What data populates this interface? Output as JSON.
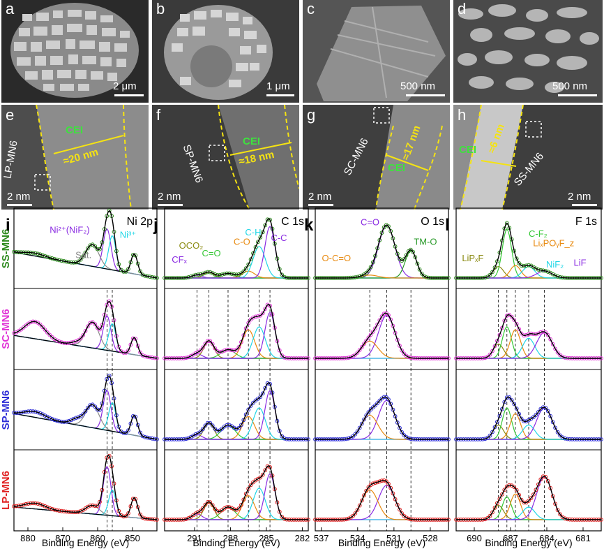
{
  "micrographs": {
    "panels": [
      {
        "letter": "a",
        "scale": "2 μm"
      },
      {
        "letter": "b",
        "scale": "1 μm"
      },
      {
        "letter": "c",
        "scale": "500 nm"
      },
      {
        "letter": "d",
        "scale": "500 nm"
      },
      {
        "letter": "e",
        "scale": "2 nm",
        "sample": "LP-MN6",
        "cei": "CEI",
        "thickness": "≈20 nm"
      },
      {
        "letter": "f",
        "scale": "2 nm",
        "sample": "SP-MN6",
        "cei": "CEI",
        "thickness": "≈18 nm"
      },
      {
        "letter": "g",
        "scale": "2 nm",
        "sample": "SC-MN6",
        "cei": "CEI",
        "thickness": "≈17 nm"
      },
      {
        "letter": "h",
        "scale": "2 nm",
        "sample": "SS-MN6",
        "cei": "CEI",
        "thickness": "≈6 nm"
      }
    ]
  },
  "colors": {
    "SS-MN6": "#2e8b1e",
    "SC-MN6": "#e033d6",
    "SP-MN6": "#2b2bd6",
    "LP-MN6": "#e02020",
    "envelope": "#000000",
    "background": "#4ab8e8",
    "purple": "#8a2be2",
    "cyan": "#1fd6e6",
    "gray": "#8a8a8a",
    "olive": "#8a8a10",
    "green": "#36c836",
    "orange": "#e88a10",
    "darkgreen": "#2a9a2a",
    "label_yellow": "#f5e312",
    "label_green": "#3ee23e"
  },
  "chart_data": [
    {
      "type": "line",
      "panel": "i",
      "title": "Ni 2p",
      "xlabel": "Binding Energy (eV)",
      "xlim": [
        884,
        843
      ],
      "xticks": [
        880,
        870,
        860,
        850
      ],
      "rows": [
        "SS-MN6",
        "SC-MN6",
        "SP-MN6",
        "LP-MN6"
      ],
      "peak_labels": [
        {
          "text": "Ni²⁺(NiF₂)",
          "color": "purple",
          "row": "SS-MN6"
        },
        {
          "text": "Ni³⁺",
          "color": "cyan",
          "row": "SS-MN6"
        },
        {
          "text": "Sat.",
          "color": "gray",
          "row": "SS-MN6"
        }
      ],
      "components": [
        {
          "name": "Ni²⁺",
          "color": "purple",
          "center": 857.3,
          "fwhm": 2.6,
          "amp": [
            0.7,
            0.6,
            0.7,
            0.85
          ]
        },
        {
          "name": "Ni³⁺",
          "color": "cyan",
          "center": 855.8,
          "fwhm": 2.4,
          "amp": [
            0.6,
            0.48,
            0.5,
            0.45
          ]
        },
        {
          "name": "Sat.",
          "color": "gray",
          "center": 861.5,
          "fwhm": 4.5,
          "amp": [
            0.38,
            0.45,
            0.4,
            0.15
          ]
        },
        {
          "name": "Ni 2p1/2",
          "color": "black",
          "center": 849.5,
          "fwhm": 2.2,
          "amp": [
            0.35,
            0.3,
            0.35,
            0.35
          ]
        }
      ],
      "baseline": {
        "left": [
          0.45,
          0.4,
          0.45,
          0.22
        ],
        "right": [
          0.0,
          0.0,
          0.0,
          0.0
        ]
      },
      "extra_bumps": [
        {
          "center": 878,
          "fwhm": 7,
          "amp": [
            0.05,
            0.3,
            0.1,
            0.1
          ]
        },
        {
          "center": 866,
          "fwhm": 4,
          "amp": [
            0.0,
            0.05,
            0.1,
            0.0
          ]
        }
      ],
      "ref_lines": [
        857.3,
        855.8
      ]
    },
    {
      "type": "line",
      "panel": "j",
      "title": "C 1s",
      "xlabel": "Binding Energy (eV)",
      "xlim": [
        293.5,
        281.5
      ],
      "xticks": [
        291,
        288,
        285,
        282
      ],
      "rows": [
        "SS-MN6",
        "SC-MN6",
        "SP-MN6",
        "LP-MN6"
      ],
      "peak_labels": [
        {
          "text": "CFₓ",
          "color": "purple",
          "row": "SS-MN6"
        },
        {
          "text": "OCO₂",
          "color": "olive",
          "row": "SS-MN6"
        },
        {
          "text": "C=O",
          "color": "green",
          "row": "SS-MN6"
        },
        {
          "text": "C-O",
          "color": "orange",
          "row": "SS-MN6"
        },
        {
          "text": "C-H",
          "color": "cyan",
          "row": "SS-MN6"
        },
        {
          "text": "C-C",
          "color": "purple",
          "row": "SS-MN6"
        }
      ],
      "components": [
        {
          "name": "CFx",
          "color": "purple",
          "center": 290.8,
          "fwhm": 1.0,
          "amp": [
            0.05,
            0.08,
            0.08,
            0.1
          ]
        },
        {
          "name": "OCO2",
          "color": "olive",
          "center": 289.8,
          "fwhm": 1.0,
          "amp": [
            0.1,
            0.3,
            0.28,
            0.3
          ]
        },
        {
          "name": "C=O",
          "color": "green",
          "center": 288.2,
          "fwhm": 1.4,
          "amp": [
            0.08,
            0.15,
            0.25,
            0.22
          ]
        },
        {
          "name": "C-O",
          "color": "orange",
          "center": 286.5,
          "fwhm": 1.2,
          "amp": [
            0.12,
            0.5,
            0.4,
            0.42
          ]
        },
        {
          "name": "C-H",
          "color": "cyan",
          "center": 285.6,
          "fwhm": 1.2,
          "amp": [
            0.55,
            0.55,
            0.55,
            0.55
          ]
        },
        {
          "name": "C-C",
          "color": "purple",
          "center": 284.7,
          "fwhm": 1.0,
          "amp": [
            0.9,
            0.8,
            0.85,
            0.8
          ]
        }
      ],
      "ref_lines": [
        290.8,
        289.8,
        288.2,
        286.5,
        285.6,
        284.7
      ]
    },
    {
      "type": "line",
      "panel": "k",
      "title": "O 1s",
      "xlabel": "Binding Energy (eV)",
      "xlim": [
        537.5,
        526.5
      ],
      "xticks": [
        537,
        534,
        531,
        528
      ],
      "rows": [
        "SS-MN6",
        "SC-MN6",
        "SP-MN6",
        "LP-MN6"
      ],
      "peak_labels": [
        {
          "text": "C=O",
          "color": "purple",
          "row": "SS-MN6"
        },
        {
          "text": "TM-O",
          "color": "darkgreen",
          "row": "SS-MN6"
        },
        {
          "text": "O-C=O",
          "color": "orange",
          "row": "SS-MN6"
        }
      ],
      "components": [
        {
          "name": "C=O",
          "color": "purple",
          "center": 531.6,
          "fwhm": 1.6,
          "amp": [
            0.92,
            0.75,
            0.68,
            0.6
          ]
        },
        {
          "name": "TM-O",
          "color": "darkgreen",
          "center": 529.6,
          "fwhm": 1.1,
          "amp": [
            0.48,
            0.0,
            0.0,
            0.0
          ]
        },
        {
          "name": "O-C=O",
          "color": "orange",
          "center": 533.0,
          "fwhm": 1.6,
          "amp": [
            0.05,
            0.3,
            0.42,
            0.52
          ]
        }
      ],
      "ref_lines": [
        533.0,
        531.6,
        529.6
      ]
    },
    {
      "type": "line",
      "panel": "l",
      "title": "F 1s",
      "xlabel": "Binding Energy (eV)",
      "xlim": [
        691.5,
        679.5
      ],
      "xticks": [
        690,
        687,
        684,
        681
      ],
      "rows": [
        "SS-MN6",
        "SC-MN6",
        "SP-MN6",
        "LP-MN6"
      ],
      "peak_labels": [
        {
          "text": "LiPₓF",
          "color": "olive",
          "row": "SS-MN6"
        },
        {
          "text": "C-F₂",
          "color": "green",
          "row": "SS-MN6"
        },
        {
          "text": "LiₓPOᵧF_z",
          "color": "orange",
          "row": "SS-MN6"
        },
        {
          "text": "NiF₂",
          "color": "cyan",
          "row": "SS-MN6"
        },
        {
          "text": "LiF",
          "color": "purple",
          "row": "SS-MN6"
        }
      ],
      "components": [
        {
          "name": "LiPxF",
          "color": "olive",
          "center": 688.0,
          "fwhm": 1.0,
          "amp": [
            0.2,
            0.25,
            0.25,
            0.25
          ]
        },
        {
          "name": "C-F2",
          "color": "green",
          "center": 687.3,
          "fwhm": 0.9,
          "amp": [
            0.85,
            0.55,
            0.55,
            0.4
          ]
        },
        {
          "name": "LixPOyFz",
          "color": "orange",
          "center": 686.6,
          "fwhm": 1.0,
          "amp": [
            0.22,
            0.5,
            0.45,
            0.45
          ]
        },
        {
          "name": "NiF2",
          "color": "cyan",
          "center": 685.5,
          "fwhm": 1.2,
          "amp": [
            0.2,
            0.35,
            0.25,
            0.22
          ]
        },
        {
          "name": "LiF",
          "color": "purple",
          "center": 684.2,
          "fwhm": 1.5,
          "amp": [
            0.12,
            0.45,
            0.55,
            0.75
          ]
        }
      ],
      "ref_lines": [
        688.0,
        687.3,
        686.6,
        685.5,
        684.2
      ]
    }
  ]
}
